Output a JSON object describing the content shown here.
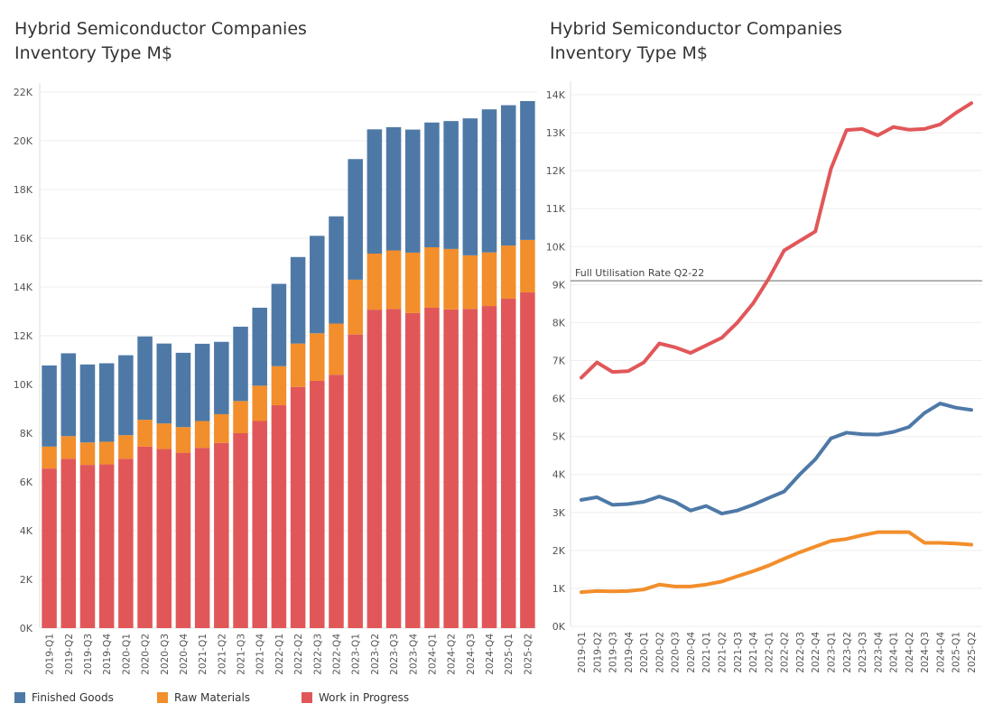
{
  "titles": {
    "left": [
      "Hybrid Semiconductor Companies",
      "Inventory Type M$"
    ],
    "right": [
      "Hybrid Semiconductor Companies",
      "Inventory Type M$"
    ]
  },
  "colors": {
    "Finished Goods": "#4e79a7",
    "Raw Materials": "#f28e2b",
    "Work in Progress": "#e15759"
  },
  "legend": [
    "Finished Goods",
    "Raw Materials",
    "Work in Progress"
  ],
  "chart_data": [
    {
      "type": "bar",
      "stacked": true,
      "title": "Hybrid Semiconductor Companies Inventory Type M$",
      "ylabel": "",
      "ylim": [
        0,
        22
      ],
      "yticks": [
        "0K",
        "2K",
        "4K",
        "6K",
        "8K",
        "10K",
        "12K",
        "14K",
        "16K",
        "18K",
        "20K",
        "22K"
      ],
      "categories": [
        "2019-Q1",
        "2019-Q2",
        "2019-Q3",
        "2019-Q4",
        "2020-Q1",
        "2020-Q2",
        "2020-Q3",
        "2020-Q4",
        "2021-Q1",
        "2021-Q2",
        "2021-Q3",
        "2021-Q4",
        "2022-Q1",
        "2022-Q2",
        "2022-Q3",
        "2022-Q4",
        "2023-Q1",
        "2023-Q2",
        "2023-Q3",
        "2023-Q4",
        "2024-Q1",
        "2024-Q2",
        "2024-Q3",
        "2024-Q4",
        "2025-Q1",
        "2025-Q2"
      ],
      "series": [
        {
          "name": "Work in Progress",
          "values": [
            6.55,
            6.95,
            6.7,
            6.72,
            6.95,
            7.45,
            7.35,
            7.2,
            7.4,
            7.6,
            8.0,
            8.5,
            9.15,
            9.9,
            10.15,
            10.4,
            12.05,
            13.07,
            13.1,
            12.93,
            13.15,
            13.08,
            13.1,
            13.22,
            13.52,
            13.78
          ]
        },
        {
          "name": "Raw Materials",
          "values": [
            0.9,
            0.93,
            0.92,
            0.93,
            0.97,
            1.1,
            1.05,
            1.05,
            1.1,
            1.18,
            1.32,
            1.45,
            1.6,
            1.78,
            1.95,
            2.1,
            2.25,
            2.3,
            2.4,
            2.48,
            2.48,
            2.48,
            2.2,
            2.2,
            2.18,
            2.15
          ]
        },
        {
          "name": "Finished Goods",
          "values": [
            3.33,
            3.4,
            3.2,
            3.22,
            3.28,
            3.42,
            3.28,
            3.05,
            3.17,
            2.97,
            3.05,
            3.2,
            3.38,
            3.55,
            4.0,
            4.4,
            4.95,
            5.1,
            5.06,
            5.05,
            5.12,
            5.25,
            5.62,
            5.87,
            5.76,
            5.7
          ]
        }
      ]
    },
    {
      "type": "line",
      "title": "Hybrid Semiconductor Companies Inventory Type M$",
      "ylim": [
        0,
        14
      ],
      "yticks": [
        "0K",
        "1K",
        "2K",
        "3K",
        "4K",
        "5K",
        "6K",
        "7K",
        "8K",
        "9K",
        "10K",
        "11K",
        "12K",
        "13K",
        "14K"
      ],
      "reference_line": {
        "label": "Full Utilisation Rate Q2-22",
        "value": 9.1
      },
      "series_ref": "same as bar chart series"
    }
  ]
}
